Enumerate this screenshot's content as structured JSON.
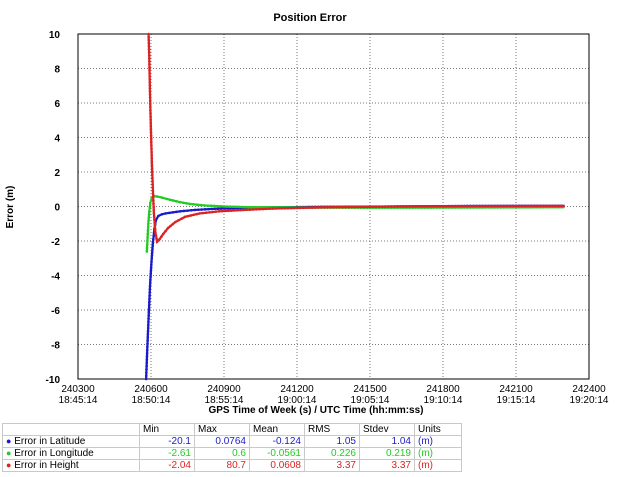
{
  "chart_data": {
    "type": "line",
    "title": "Position Error",
    "xlabel": "GPS Time of Week (s) / UTC Time (hh:mm:ss)",
    "ylabel": "Error (m)",
    "xlim": [
      240300,
      242400
    ],
    "ylim": [
      -10,
      10
    ],
    "x_ticks": [
      240300,
      240600,
      240900,
      241200,
      241500,
      241800,
      242100,
      242400
    ],
    "x_tick_labels_gps": [
      "240300",
      "240600",
      "240900",
      "241200",
      "241500",
      "241800",
      "242100",
      "242400"
    ],
    "x_tick_labels_utc": [
      "18:45:14",
      "18:50:14",
      "18:55:14",
      "19:00:14",
      "19:05:14",
      "19:10:14",
      "19:15:14",
      "19:20:14"
    ],
    "y_ticks": [
      -10,
      -8,
      -6,
      -4,
      -2,
      0,
      2,
      4,
      6,
      8,
      10
    ],
    "y_tick_labels": [
      "-10",
      "-8",
      "-6",
      "-4",
      "-2",
      "0",
      "2",
      "4",
      "6",
      "8",
      "10"
    ],
    "grid": true,
    "series": [
      {
        "name": "Error in Latitude",
        "color": "#1a1acc",
        "x": [
          240580,
          240584,
          240590,
          240596,
          240602,
          240608,
          240614,
          240620,
          240630,
          240645,
          240660,
          240690,
          240720,
          240780,
          240850,
          240950,
          241100,
          241300,
          241600,
          241900,
          242200,
          242300
        ],
        "y": [
          -10,
          -8.5,
          -6.5,
          -4.6,
          -3.2,
          -2.1,
          -1.3,
          -0.8,
          -0.55,
          -0.45,
          -0.4,
          -0.34,
          -0.28,
          -0.2,
          -0.14,
          -0.09,
          -0.05,
          -0.02,
          0.0,
          0.03,
          0.04,
          0.04
        ]
      },
      {
        "name": "Error in Longitude",
        "color": "#22cc22",
        "x": [
          240583,
          240586,
          240589,
          240593,
          240597,
          240603,
          240612,
          240625,
          240645,
          240665,
          240690,
          240720,
          240760,
          240820,
          240900,
          241000,
          241200,
          241500,
          241800,
          242100,
          242300
        ],
        "y": [
          -2.61,
          -1.8,
          -1.0,
          -0.3,
          0.2,
          0.5,
          0.6,
          0.58,
          0.52,
          0.44,
          0.35,
          0.25,
          0.15,
          0.06,
          0.0,
          -0.04,
          -0.06,
          -0.07,
          -0.06,
          -0.05,
          -0.04
        ]
      },
      {
        "name": "Error in Height",
        "color": "#dd2222",
        "x": [
          240590,
          240593,
          240596,
          240600,
          240604,
          240608,
          240612,
          240618,
          240625,
          240635,
          240650,
          240670,
          240700,
          240740,
          240800,
          240880,
          240980,
          241100,
          241300,
          241600,
          241900,
          242200,
          242300
        ],
        "y": [
          10,
          8.6,
          6.5,
          4.3,
          2.4,
          0.9,
          -0.4,
          -1.5,
          -2.04,
          -1.9,
          -1.6,
          -1.25,
          -0.9,
          -0.6,
          -0.4,
          -0.28,
          -0.2,
          -0.12,
          -0.05,
          0.0,
          0.02,
          0.03,
          0.03
        ]
      }
    ],
    "stats_table": {
      "headers": [
        "Min",
        "Max",
        "Mean",
        "RMS",
        "Stdev",
        "Units"
      ],
      "rows": [
        {
          "name": "Error in Latitude",
          "color": "#1a1acc",
          "min": "-20.1",
          "max": "0.0764",
          "mean": "-0.124",
          "rms": "1.05",
          "stdev": "1.04",
          "units": "(m)"
        },
        {
          "name": "Error in Longitude",
          "color": "#22cc22",
          "min": "-2.61",
          "max": "0.6",
          "mean": "-0.0561",
          "rms": "0.226",
          "stdev": "0.219",
          "units": "(m)"
        },
        {
          "name": "Error in Height",
          "color": "#dd2222",
          "min": "-2.04",
          "max": "80.7",
          "mean": "0.0608",
          "rms": "3.37",
          "stdev": "3.37",
          "units": "(m)"
        }
      ]
    }
  }
}
